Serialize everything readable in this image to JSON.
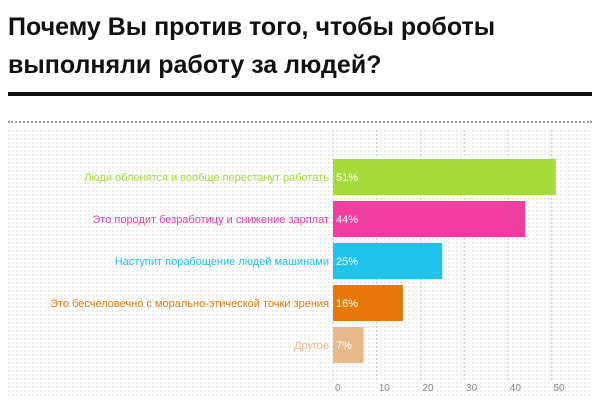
{
  "title": "Почему Вы против того, чтобы роботы выполняли работу за людей?",
  "chart_data": {
    "type": "bar",
    "orientation": "horizontal",
    "title": "Почему Вы против того, чтобы роботы выполняли работу за людей?",
    "xlabel": "",
    "ylabel": "",
    "xlim": [
      0,
      60
    ],
    "xticks": [
      0,
      10,
      20,
      30,
      40,
      50
    ],
    "grid": true,
    "categories": [
      "Люди обленятся и вообще перестанут работать",
      "Это породит безработицу и снижение зарплат",
      "Наступит порабощение людей машинами",
      "Это бесчеловечно с морально-этической точки зрения",
      "Другое"
    ],
    "values": [
      51,
      44,
      25,
      16,
      7
    ],
    "value_labels": [
      "51%",
      "44%",
      "25%",
      "16%",
      "7%"
    ],
    "colors": [
      "#a6dc3a",
      "#f03ea0",
      "#1ec4ec",
      "#e57a0a",
      "#e8b98a"
    ]
  }
}
